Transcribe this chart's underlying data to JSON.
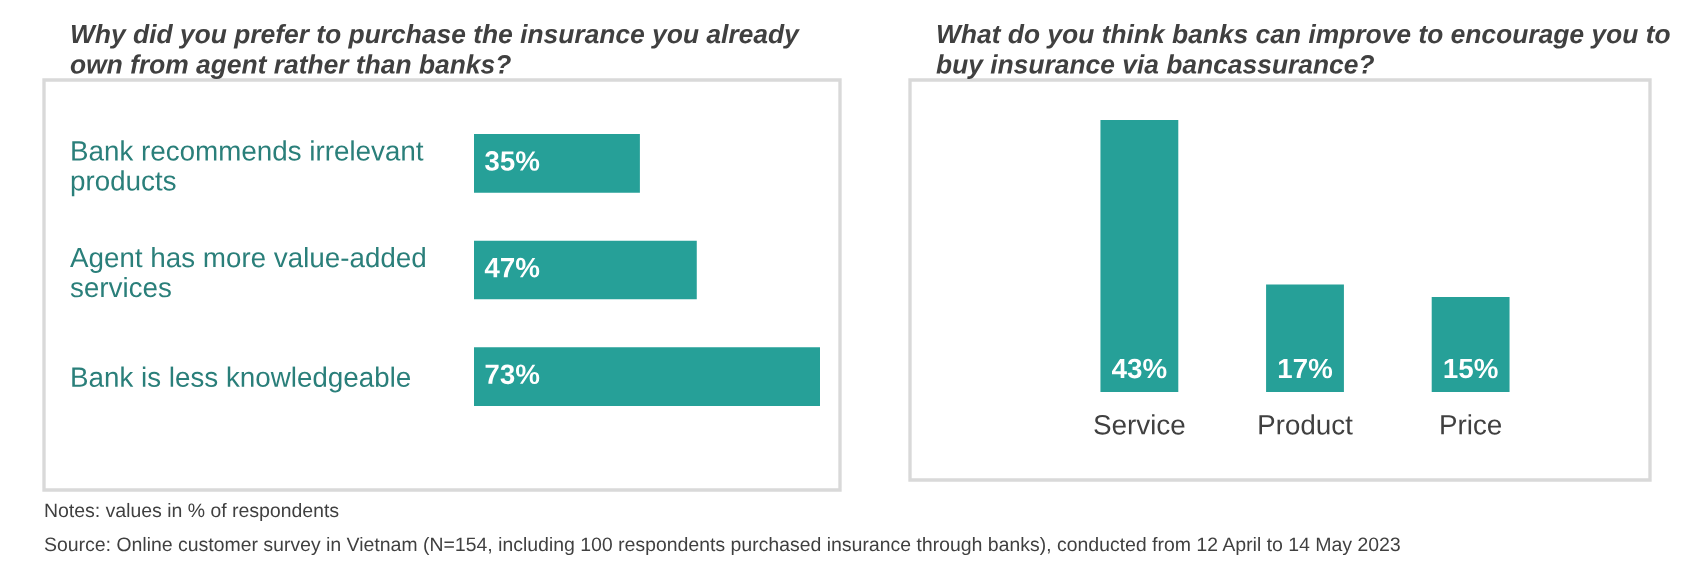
{
  "chart_data": [
    {
      "type": "bar",
      "orientation": "horizontal",
      "title": "Why did you prefer to purchase the insurance you already own from agent rather than banks?",
      "categories": [
        "Bank recommends irrelevant products",
        "Agent has more value-added services",
        "Bank is less knowledgeable"
      ],
      "values": [
        35,
        47,
        73
      ],
      "color": "#26a098",
      "data_labels": true,
      "value_labels": [
        "35%",
        "47%",
        "73%"
      ],
      "annotations": [
        "Notes: values in % of respondents",
        "Source: Online customer survey in Vietnam (N=154, including 100 respondents purchased insurance through banks), conducted from 12 April to 14 May 2023"
      ]
    },
    {
      "type": "bar",
      "title": "What do you think banks can improve to encourage you to buy insurance via bancassurance?",
      "categories": [
        "Service",
        "Product",
        "Price"
      ],
      "values": [
        43,
        17,
        15
      ],
      "color": "#26a098",
      "data_labels": true,
      "value_labels": [
        "43%",
        "17%",
        "15%"
      ]
    }
  ]
}
